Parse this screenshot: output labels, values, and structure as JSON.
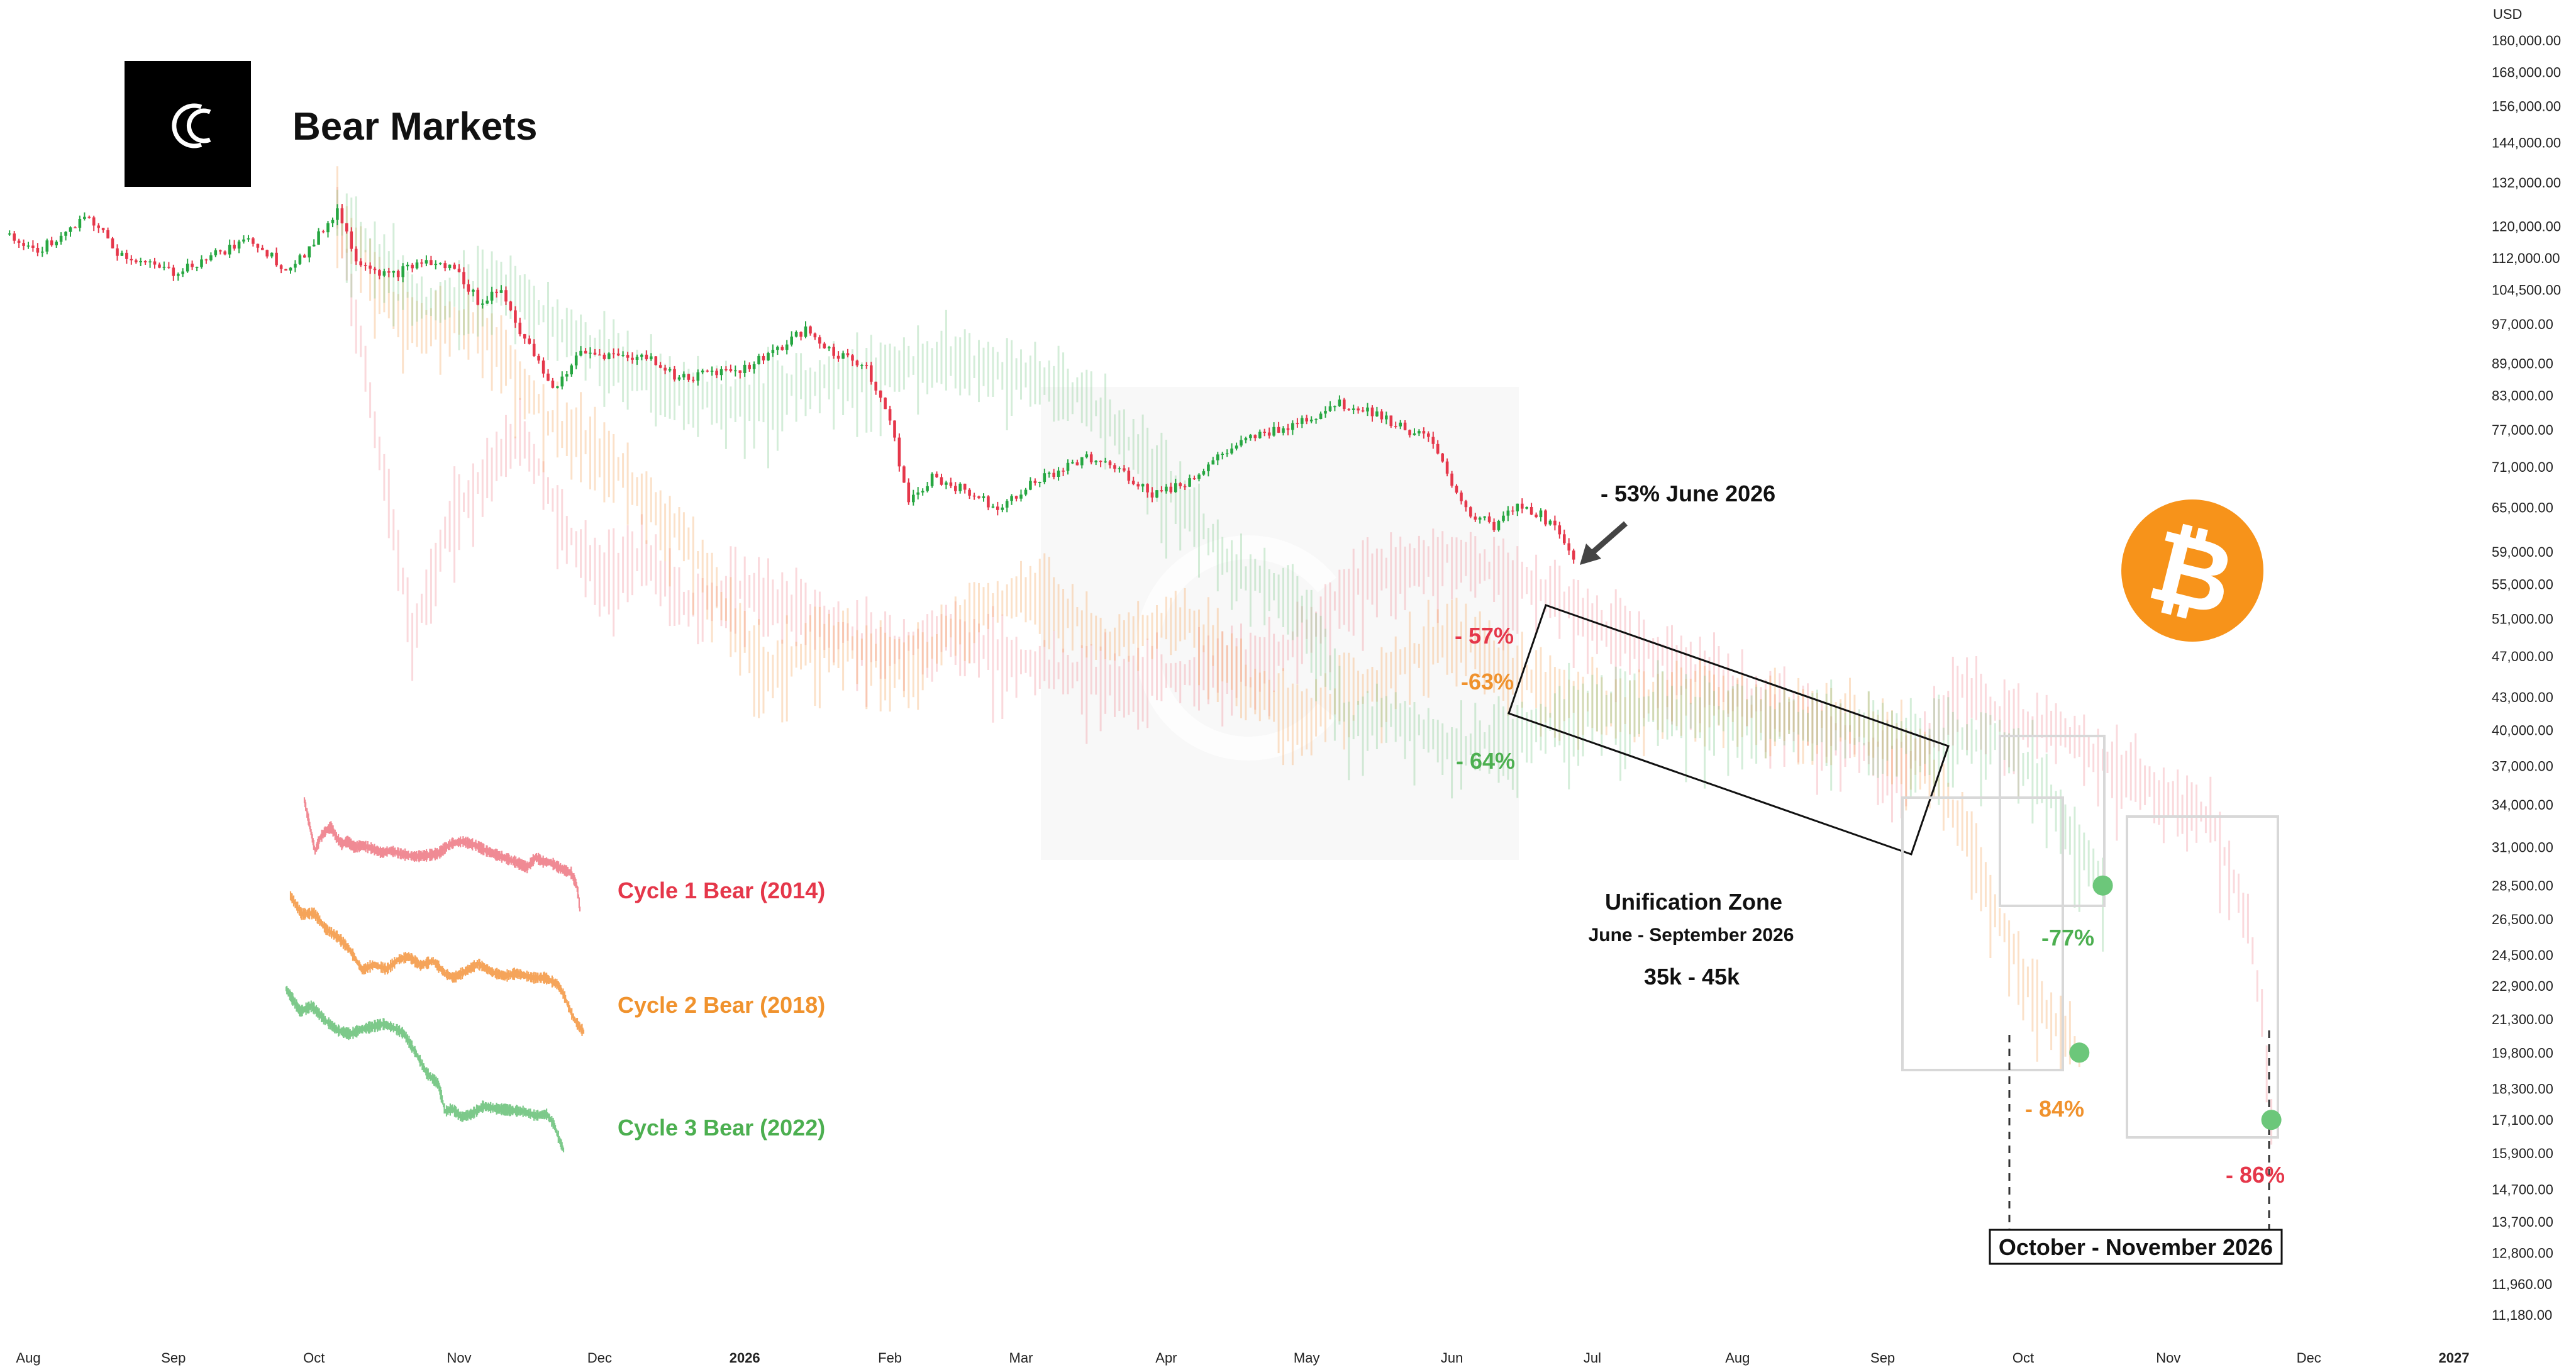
{
  "header": {
    "title": "Bear Markets",
    "logo_icon": "brand-c-logo-icon"
  },
  "chart_data": {
    "type": "candlestick",
    "currency_label": "USD",
    "y_scale": "log",
    "ylim": [
      11180,
      180000
    ],
    "y_ticks": [
      {
        "value": 180000,
        "label": "180,000.00"
      },
      {
        "value": 168000,
        "label": "168,000.00"
      },
      {
        "value": 156000,
        "label": "156,000.00"
      },
      {
        "value": 144000,
        "label": "144,000.00"
      },
      {
        "value": 132000,
        "label": "132,000.00"
      },
      {
        "value": 120000,
        "label": "120,000.00"
      },
      {
        "value": 112000,
        "label": "112,000.00"
      },
      {
        "value": 104500,
        "label": "104,500.00"
      },
      {
        "value": 97000,
        "label": "97,000.00"
      },
      {
        "value": 89000,
        "label": "89,000.00"
      },
      {
        "value": 83000,
        "label": "83,000.00"
      },
      {
        "value": 77000,
        "label": "77,000.00"
      },
      {
        "value": 71000,
        "label": "71,000.00"
      },
      {
        "value": 65000,
        "label": "65,000.00"
      },
      {
        "value": 59000,
        "label": "59,000.00"
      },
      {
        "value": 55000,
        "label": "55,000.00"
      },
      {
        "value": 51000,
        "label": "51,000.00"
      },
      {
        "value": 47000,
        "label": "47,000.00"
      },
      {
        "value": 43000,
        "label": "43,000.00"
      },
      {
        "value": 40000,
        "label": "40,000.00"
      },
      {
        "value": 37000,
        "label": "37,000.00"
      },
      {
        "value": 34000,
        "label": "34,000.00"
      },
      {
        "value": 31000,
        "label": "31,000.00"
      },
      {
        "value": 28500,
        "label": "28,500.00"
      },
      {
        "value": 26500,
        "label": "26,500.00"
      },
      {
        "value": 24500,
        "label": "24,500.00"
      },
      {
        "value": 22900,
        "label": "22,900.00"
      },
      {
        "value": 21300,
        "label": "21,300.00"
      },
      {
        "value": 19800,
        "label": "19,800.00"
      },
      {
        "value": 18300,
        "label": "18,300.00"
      },
      {
        "value": 17100,
        "label": "17,100.00"
      },
      {
        "value": 15900,
        "label": "15,900.00"
      },
      {
        "value": 14700,
        "label": "14,700.00"
      },
      {
        "value": 13700,
        "label": "13,700.00"
      },
      {
        "value": 12800,
        "label": "12,800.00"
      },
      {
        "value": 11960,
        "label": "11,960.00"
      },
      {
        "value": 11180,
        "label": "11,180.00"
      }
    ],
    "x_ticks": [
      {
        "date": "2025-08-01",
        "label": "Aug",
        "bold": false
      },
      {
        "date": "2025-09-01",
        "label": "Sep",
        "bold": false
      },
      {
        "date": "2025-10-01",
        "label": "Oct",
        "bold": false
      },
      {
        "date": "2025-11-01",
        "label": "Nov",
        "bold": false
      },
      {
        "date": "2025-12-01",
        "label": "Dec",
        "bold": false
      },
      {
        "date": "2026-01-01",
        "label": "2026",
        "bold": true
      },
      {
        "date": "2026-02-01",
        "label": "Feb",
        "bold": false
      },
      {
        "date": "2026-03-01",
        "label": "Mar",
        "bold": false
      },
      {
        "date": "2026-04-01",
        "label": "Apr",
        "bold": false
      },
      {
        "date": "2026-05-01",
        "label": "May",
        "bold": false
      },
      {
        "date": "2026-06-01",
        "label": "Jun",
        "bold": false
      },
      {
        "date": "2026-07-01",
        "label": "Jul",
        "bold": false
      },
      {
        "date": "2026-08-01",
        "label": "Aug",
        "bold": false
      },
      {
        "date": "2026-09-01",
        "label": "Sep",
        "bold": false
      },
      {
        "date": "2026-10-01",
        "label": "Oct",
        "bold": false
      },
      {
        "date": "2026-11-01",
        "label": "Nov",
        "bold": false
      },
      {
        "date": "2026-12-01",
        "label": "Dec",
        "bold": false
      },
      {
        "date": "2027-01-01",
        "label": "2027",
        "bold": true
      }
    ],
    "series": [
      {
        "name": "BTC",
        "color_up": "#26a641",
        "color_down": "#e5374a",
        "points": [
          [
            "2025-07-28",
            118000
          ],
          [
            "2025-08-02",
            113500
          ],
          [
            "2025-08-08",
            117000
          ],
          [
            "2025-08-14",
            122500
          ],
          [
            "2025-08-20",
            113500
          ],
          [
            "2025-08-26",
            110500
          ],
          [
            "2025-09-01",
            108500
          ],
          [
            "2025-09-10",
            113000
          ],
          [
            "2025-09-18",
            116500
          ],
          [
            "2025-09-25",
            109500
          ],
          [
            "2025-09-30",
            114000
          ],
          [
            "2025-10-06",
            124500
          ],
          [
            "2025-10-10",
            112000
          ],
          [
            "2025-10-17",
            107500
          ],
          [
            "2025-10-24",
            111000
          ],
          [
            "2025-10-31",
            109500
          ],
          [
            "2025-11-05",
            102000
          ],
          [
            "2025-11-10",
            104500
          ],
          [
            "2025-11-14",
            95500
          ],
          [
            "2025-11-21",
            84000
          ],
          [
            "2025-11-27",
            91000
          ],
          [
            "2025-12-05",
            90500
          ],
          [
            "2025-12-12",
            90000
          ],
          [
            "2025-12-18",
            86000
          ],
          [
            "2025-12-25",
            87500
          ],
          [
            "2026-01-01",
            88000
          ],
          [
            "2026-01-07",
            91500
          ],
          [
            "2026-01-14",
            95500
          ],
          [
            "2026-01-20",
            91000
          ],
          [
            "2026-01-27",
            88500
          ],
          [
            "2026-02-01",
            78500
          ],
          [
            "2026-02-05",
            65500
          ],
          [
            "2026-02-10",
            69500
          ],
          [
            "2026-02-17",
            67500
          ],
          [
            "2026-02-24",
            65000
          ],
          [
            "2026-03-02",
            68000
          ],
          [
            "2026-03-09",
            70500
          ],
          [
            "2026-03-16",
            72500
          ],
          [
            "2026-03-22",
            70500
          ],
          [
            "2026-03-29",
            67000
          ],
          [
            "2026-04-05",
            68500
          ],
          [
            "2026-04-12",
            72500
          ],
          [
            "2026-04-19",
            75500
          ],
          [
            "2026-04-26",
            77500
          ],
          [
            "2026-05-03",
            79500
          ],
          [
            "2026-05-07",
            81500
          ],
          [
            "2026-05-14",
            80500
          ],
          [
            "2026-05-21",
            77500
          ],
          [
            "2026-05-27",
            75500
          ],
          [
            "2026-06-01",
            68500
          ],
          [
            "2026-06-05",
            64000
          ],
          [
            "2026-06-10",
            62500
          ],
          [
            "2026-06-15",
            65000
          ],
          [
            "2026-06-20",
            64000
          ],
          [
            "2026-06-25",
            60500
          ],
          [
            "2026-06-27",
            58500
          ]
        ]
      },
      {
        "name": "Cycle 1 Bear (2014)",
        "color": "#f08a94",
        "points": [
          [
            "2025-10-06",
            124000
          ],
          [
            "2025-10-14",
            78000
          ],
          [
            "2025-10-22",
            49000
          ],
          [
            "2025-10-30",
            63000
          ],
          [
            "2025-11-07",
            71000
          ],
          [
            "2025-11-15",
            76000
          ],
          [
            "2025-11-23",
            63000
          ],
          [
            "2025-12-01",
            56000
          ],
          [
            "2025-12-10",
            58500
          ],
          [
            "2025-12-20",
            52500
          ],
          [
            "2026-01-01",
            54500
          ],
          [
            "2026-01-15",
            51500
          ],
          [
            "2026-01-30",
            47500
          ],
          [
            "2026-02-12",
            49500
          ],
          [
            "2026-03-01",
            46500
          ],
          [
            "2026-03-20",
            44500
          ],
          [
            "2026-04-10",
            45500
          ],
          [
            "2026-04-25",
            47000
          ],
          [
            "2026-05-05",
            52000
          ],
          [
            "2026-05-15",
            56500
          ],
          [
            "2026-06-01",
            58500
          ],
          [
            "2026-06-20",
            54500
          ],
          [
            "2026-07-05",
            49500
          ],
          [
            "2026-07-25",
            45000
          ],
          [
            "2026-08-15",
            41000
          ],
          [
            "2026-09-05",
            36500
          ],
          [
            "2026-09-18",
            44000
          ],
          [
            "2026-09-28",
            40500
          ],
          [
            "2026-10-10",
            40000
          ],
          [
            "2026-10-22",
            36500
          ],
          [
            "2026-11-01",
            34500
          ],
          [
            "2026-11-10",
            33000
          ],
          [
            "2026-11-18",
            26500
          ],
          [
            "2026-11-21",
            21500
          ],
          [
            "2026-11-23",
            17100
          ]
        ]
      },
      {
        "name": "Cycle 2 Bear (2018)",
        "color": "#f5a45a",
        "points": [
          [
            "2025-10-06",
            124000
          ],
          [
            "2025-10-20",
            97000
          ],
          [
            "2025-11-05",
            98000
          ],
          [
            "2025-11-20",
            79000
          ],
          [
            "2025-12-05",
            71000
          ],
          [
            "2025-12-20",
            60000
          ],
          [
            "2026-01-05",
            45500
          ],
          [
            "2026-01-20",
            49000
          ],
          [
            "2026-02-05",
            46000
          ],
          [
            "2026-02-20",
            52500
          ],
          [
            "2026-03-05",
            54500
          ],
          [
            "2026-03-20",
            48500
          ],
          [
            "2026-04-05",
            51500
          ],
          [
            "2026-04-20",
            43500
          ],
          [
            "2026-05-01",
            41000
          ],
          [
            "2026-05-15",
            44500
          ],
          [
            "2026-06-01",
            49500
          ],
          [
            "2026-06-20",
            44000
          ],
          [
            "2026-07-05",
            42000
          ],
          [
            "2026-07-20",
            43500
          ],
          [
            "2026-08-10",
            41000
          ],
          [
            "2026-08-25",
            41000
          ],
          [
            "2026-09-10",
            37500
          ],
          [
            "2026-09-18",
            32500
          ],
          [
            "2026-09-25",
            27000
          ],
          [
            "2026-10-01",
            23500
          ],
          [
            "2026-10-08",
            21000
          ],
          [
            "2026-10-13",
            19800
          ]
        ]
      },
      {
        "name": "Cycle 3 Bear (2022)",
        "color": "#7dc98a",
        "points": [
          [
            "2025-10-06",
            124000
          ],
          [
            "2025-10-25",
            101000
          ],
          [
            "2025-11-10",
            106000
          ],
          [
            "2025-11-28",
            93000
          ],
          [
            "2025-12-15",
            85000
          ],
          [
            "2026-01-01",
            82000
          ],
          [
            "2026-01-15",
            85500
          ],
          [
            "2026-02-01",
            88000
          ],
          [
            "2026-02-15",
            90000
          ],
          [
            "2026-03-01",
            87000
          ],
          [
            "2026-03-15",
            82500
          ],
          [
            "2026-04-01",
            68500
          ],
          [
            "2026-04-15",
            57500
          ],
          [
            "2026-05-01",
            52000
          ],
          [
            "2026-05-10",
            40500
          ],
          [
            "2026-05-20",
            41500
          ],
          [
            "2026-06-01",
            38500
          ],
          [
            "2026-06-15",
            39500
          ],
          [
            "2026-07-01",
            42500
          ],
          [
            "2026-07-20",
            41500
          ],
          [
            "2026-08-05",
            41000
          ],
          [
            "2026-08-25",
            40500
          ],
          [
            "2026-09-10",
            39000
          ],
          [
            "2026-09-25",
            39500
          ],
          [
            "2026-10-05",
            36000
          ],
          [
            "2026-10-12",
            31500
          ],
          [
            "2026-10-18",
            28500
          ]
        ]
      }
    ],
    "annotations": {
      "current_drawdown": "- 53% June 2026",
      "cycle1_drawdown_a": "- 57%",
      "cycle2_drawdown_a": "-63%",
      "cycle3_drawdown_a": "- 64%",
      "unification_title": "Unification Zone",
      "unification_dates": "June - September 2026",
      "unification_range": "35k - 45k",
      "cycle3_bottom": "-77%",
      "cycle2_bottom": "- 84%",
      "cycle1_bottom": "- 86%",
      "bottom_window": "October - November 2026"
    },
    "legend": [
      {
        "label": "Cycle 1 Bear (2014)",
        "color": "#e5374a"
      },
      {
        "label": "Cycle 2 Bear (2018)",
        "color": "#f0922d"
      },
      {
        "label": "Cycle 3 Bear (2022)",
        "color": "#4caf50"
      }
    ],
    "bottom_markers": [
      {
        "date": "2026-10-18",
        "value": 28500,
        "label": "-77%"
      },
      {
        "date": "2026-10-13",
        "value": 19800,
        "label": "- 84%"
      },
      {
        "date": "2026-11-23",
        "value": 17100,
        "label": "- 86%"
      }
    ],
    "colors": {
      "red": "#e5374a",
      "orange": "#f0922d",
      "green": "#4caf50",
      "bitcoin": "#f7931a"
    },
    "bitcoin_icon": "bitcoin-icon"
  }
}
